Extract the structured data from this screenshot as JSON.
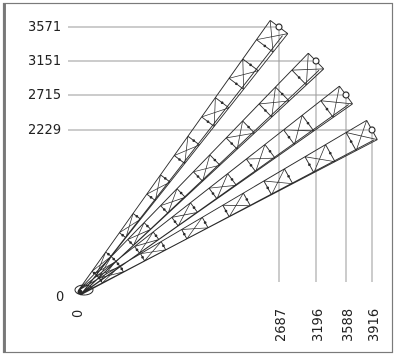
{
  "diagram": {
    "y_labels": [
      "3571",
      "3151",
      "2715",
      "2229"
    ],
    "x_labels": [
      "2687",
      "3196",
      "3588",
      "3916"
    ],
    "origin_x_label": "0",
    "origin_y_label": "0"
  },
  "colors": {
    "background": "#ffffff",
    "border": "#7a7a7a",
    "leader_line": "#9a9a9a",
    "frame_line": "#2a2a2a"
  }
}
